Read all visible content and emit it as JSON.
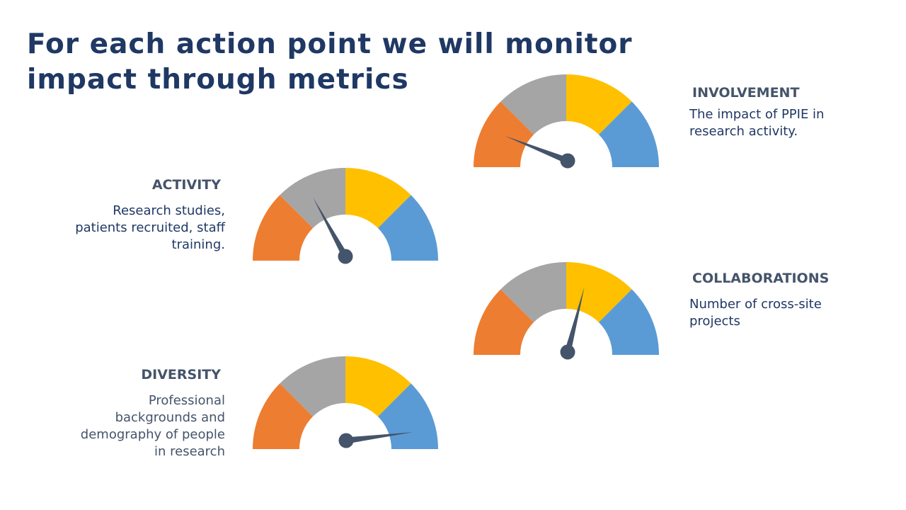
{
  "title": "For each action point we will monitor impact through metrics",
  "colors": {
    "title": "#1f3864",
    "heading": "#44546a",
    "needle": "#44546a",
    "segments": [
      "#ed7d31",
      "#a5a5a5",
      "#ffc000",
      "#5b9bd5"
    ]
  },
  "metrics": [
    {
      "id": "involvement",
      "heading": "INVOLVEMENT",
      "description": "The impact of PPIE in research activity.",
      "needle_level": 0.12
    },
    {
      "id": "activity",
      "heading": "ACTIVITY",
      "description": "Research studies, patients recruited, staff training.",
      "needle_level": 0.34
    },
    {
      "id": "collaborations",
      "heading": "COLLABORATIONS",
      "description": "Number of cross-site projects",
      "needle_level": 0.58
    },
    {
      "id": "diversity",
      "heading": "DIVERSITY",
      "description": "Professional backgrounds and demography of people in research",
      "needle_level": 0.96
    }
  ]
}
